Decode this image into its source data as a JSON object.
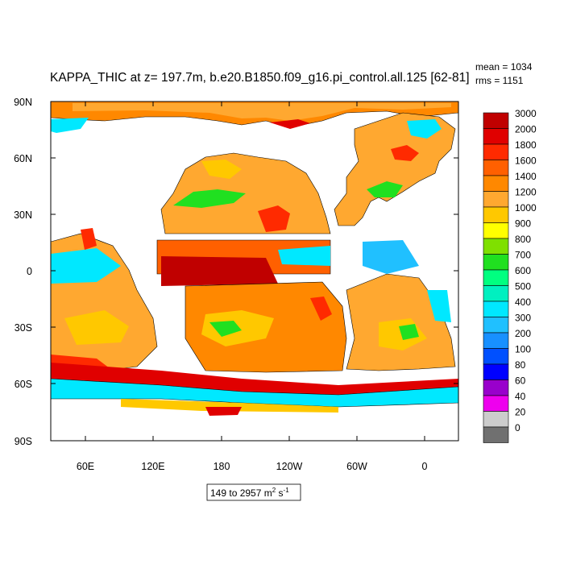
{
  "title": "KAPPA_THIC at z= 197.7m, b.e20.B1850.f09_g16.pi_control.all.125 [62-81]",
  "stats": {
    "mean": "mean = 1034",
    "rms": "rms = 1151"
  },
  "range_label": {
    "prefix": "149 to 2957 m",
    "sup1": "2",
    "mid": " s",
    "sup2": "-1"
  },
  "lat_labels": [
    "90N",
    "60N",
    "30N",
    "0",
    "30S",
    "60S",
    "90S"
  ],
  "lon_labels": [
    "60E",
    "120E",
    "180",
    "120W",
    "60W",
    "0"
  ],
  "colorbar": {
    "labels": [
      "3000",
      "2000",
      "1800",
      "1600",
      "1400",
      "1200",
      "1000",
      "900",
      "800",
      "700",
      "600",
      "500",
      "400",
      "300",
      "200",
      "100",
      "80",
      "60",
      "40",
      "20",
      "0"
    ],
    "colors": [
      "#c00000",
      "#e00000",
      "#ff2a00",
      "#ff6000",
      "#ff8800",
      "#ffa830",
      "#ffc800",
      "#ffff00",
      "#7fe000",
      "#20e020",
      "#00ff80",
      "#00f0c0",
      "#00e8ff",
      "#20c0ff",
      "#1890ff",
      "#0050ff",
      "#0000ff",
      "#9900cc",
      "#ee00ee",
      "#cccccc",
      "#707070"
    ]
  },
  "map": {
    "land_color": "#ffffff",
    "ocean_regions": [
      {
        "name": "arctic",
        "color": "#ff8800"
      },
      {
        "name": "north-pacific",
        "color": "#ffa830"
      },
      {
        "name": "equatorial-pacific",
        "color": "#c00000"
      },
      {
        "name": "south-pacific",
        "color": "#ff8800"
      },
      {
        "name": "indian-ocean",
        "color": "#ffa830"
      },
      {
        "name": "atlantic",
        "color": "#ffa830"
      },
      {
        "name": "southern-ocean",
        "color": "#00e8ff"
      }
    ]
  }
}
